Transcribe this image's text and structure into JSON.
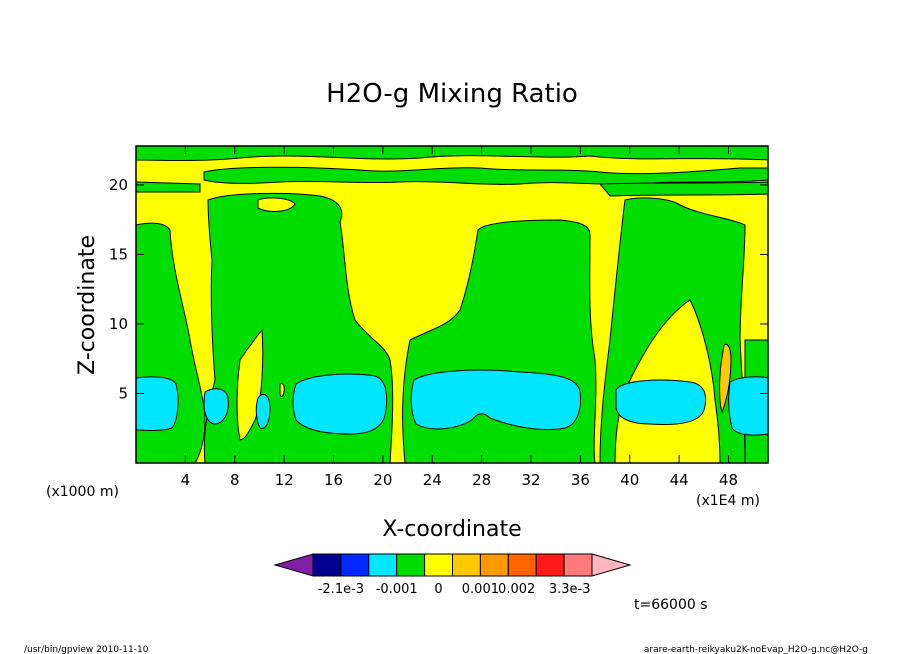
{
  "chart_data": {
    "type": "contour",
    "title": "H2O-g Mixing Ratio",
    "xlabel": "X-coordinate",
    "ylabel": "Z-coordinate",
    "x_unit_left": "(x1000 m)",
    "x_unit_right": "(x1E4 m)",
    "x_ticks": [
      "4",
      "8",
      "12",
      "16",
      "20",
      "24",
      "28",
      "32",
      "36",
      "40",
      "44",
      "48"
    ],
    "y_ticks": [
      "5",
      "10",
      "15",
      "20"
    ],
    "xlim": [
      0,
      51.2
    ],
    "ylim": [
      0,
      22.8
    ],
    "time_label": "t=66000 s",
    "colorbar": {
      "levels": [
        "-2.1e-3",
        "-0.001",
        "0",
        "0.001",
        "0.002",
        "3.3e-3"
      ],
      "colors": [
        "#7f1fa6",
        "#000090",
        "#0028ff",
        "#00e6ff",
        "#00dd00",
        "#ffff00",
        "#ffc800",
        "#ff9900",
        "#ff6600",
        "#ff1a1a",
        "#ff7a7a",
        "#ffb6c1"
      ]
    },
    "regions": {
      "background": "#ffff00",
      "green": "#00dd00",
      "cyan": "#00e6ff",
      "orange": "#ffc800"
    }
  },
  "footer": {
    "left": "/usr/bin/gpview   2010-11-10",
    "right": "arare-earth-reikyaku2K-noEvap_H2O-g.nc@H2O-g"
  }
}
